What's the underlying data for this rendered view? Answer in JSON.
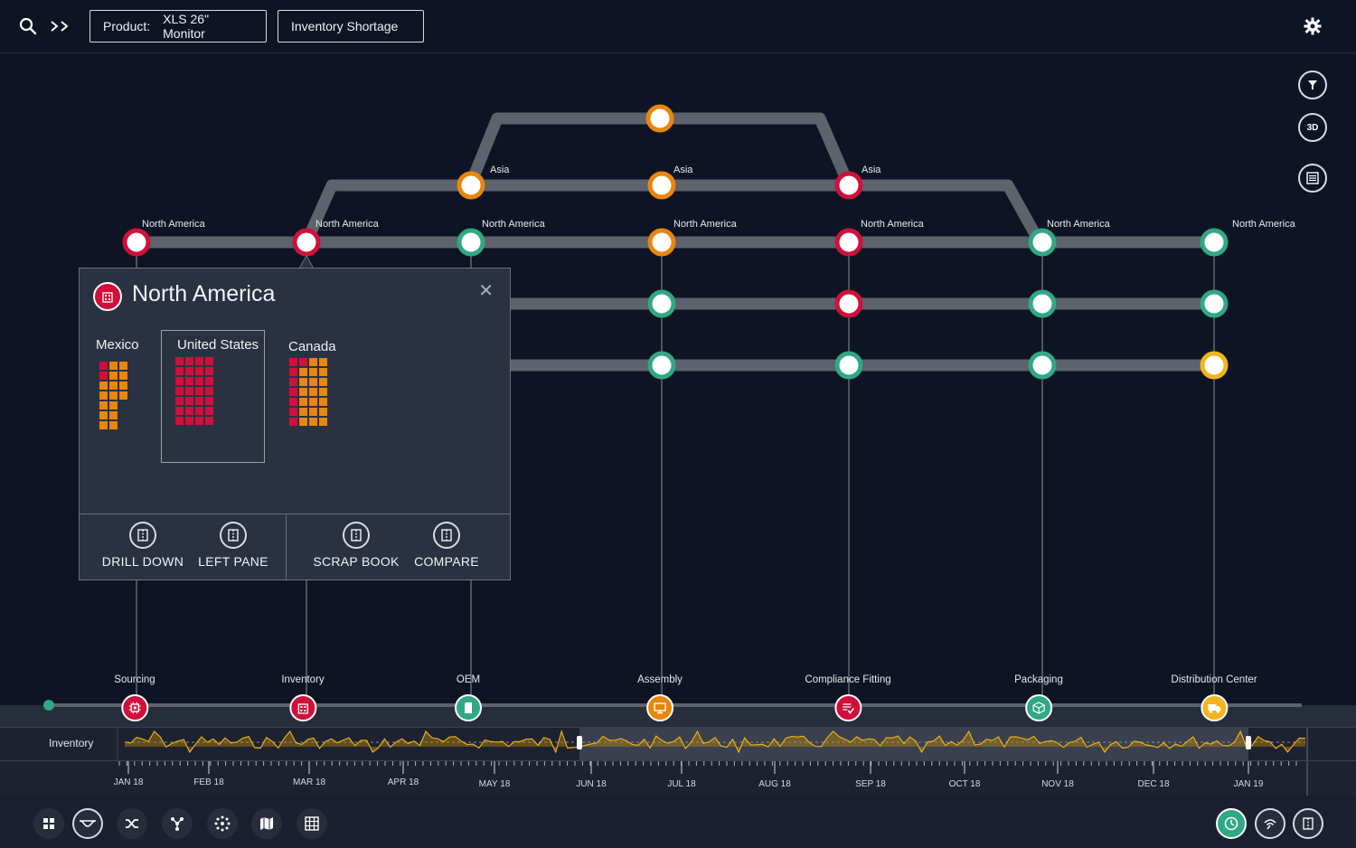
{
  "topbar": {
    "product_label": "Product:",
    "product_value": "XLS 26\" Monitor",
    "view_label": "Inventory Shortage"
  },
  "right_tools": {
    "three_d_label": "3D"
  },
  "graph": {
    "top_row": [
      "North America",
      "North America",
      "North America",
      "North America",
      "North America",
      "North America",
      "North America"
    ],
    "asia_row": [
      "Asia",
      "Asia",
      "Asia"
    ]
  },
  "popup": {
    "title": "North America",
    "countries": [
      "Mexico",
      "United States",
      "Canada"
    ],
    "actions": [
      "DRILL DOWN",
      "LEFT PANE",
      "SCRAP BOOK",
      "COMPARE"
    ]
  },
  "stages": [
    {
      "label": "Sourcing",
      "color": "#d0103a"
    },
    {
      "label": "Inventory",
      "color": "#d0103a"
    },
    {
      "label": "OEM",
      "color": "#2fa883"
    },
    {
      "label": "Assembly",
      "color": "#e8860d"
    },
    {
      "label": "Compliance Fitting",
      "color": "#d0103a"
    },
    {
      "label": "Packaging",
      "color": "#2fa883"
    },
    {
      "label": "Distribution Center",
      "color": "#f2b51c"
    }
  ],
  "timeline": {
    "label": "Inventory",
    "months": [
      "JAN 18",
      "FEB 18",
      "MAR 18",
      "APR 18",
      "MAY 18",
      "JUN 18",
      "JUL 18",
      "AUG 18",
      "SEP 18",
      "OCT 18",
      "NOV 18",
      "DEC 18",
      "JAN 19"
    ]
  },
  "colors": {
    "red": "#d0103a",
    "orange": "#e8860d",
    "green": "#2fa883",
    "yellow": "#f2b51c",
    "track": "#5d626c"
  }
}
